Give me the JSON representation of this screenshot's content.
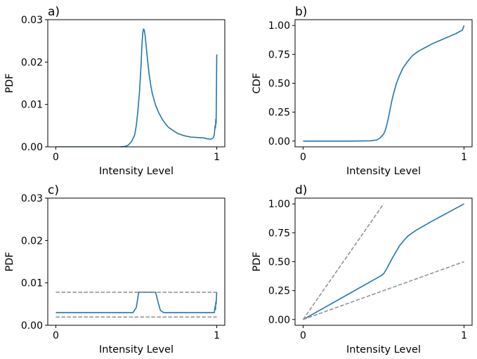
{
  "colors": {
    "series": "#1f77b4",
    "reference": "#8c8c8c",
    "axes": "#000000"
  },
  "chart_data": [
    {
      "panel": "a)",
      "type": "line",
      "xlabel": "Intensity Level",
      "ylabel": "PDF",
      "xlim": [
        -0.05,
        1.05
      ],
      "ylim": [
        0,
        0.03
      ],
      "xticks": [
        0,
        1
      ],
      "xtick_labels": [
        "0",
        "1"
      ],
      "yticks": [
        0,
        0.01,
        0.02,
        0.03
      ],
      "ytick_labels": [
        "0.00",
        "0.01",
        "0.02",
        "0.03"
      ],
      "grid": false,
      "series": [
        {
          "style": "solid",
          "x": [
            0,
            0.3,
            0.4,
            0.43,
            0.45,
            0.47,
            0.49,
            0.5,
            0.51,
            0.52,
            0.53,
            0.535,
            0.54,
            0.545,
            0.55,
            0.555,
            0.56,
            0.57,
            0.58,
            0.59,
            0.6,
            0.62,
            0.64,
            0.66,
            0.68,
            0.7,
            0.73,
            0.76,
            0.8,
            0.84,
            0.88,
            0.92,
            0.94,
            0.96,
            0.97,
            0.98,
            0.985,
            0.99,
            0.992,
            0.994,
            0.996,
            0.998,
            1.0
          ],
          "y": [
            0,
            0,
            2e-05,
            0.0001,
            0.0004,
            0.0012,
            0.0028,
            0.005,
            0.0085,
            0.013,
            0.0195,
            0.024,
            0.0268,
            0.0278,
            0.0275,
            0.0262,
            0.0243,
            0.0205,
            0.017,
            0.0145,
            0.0125,
            0.0098,
            0.008,
            0.0066,
            0.0055,
            0.0046,
            0.0038,
            0.0031,
            0.0026,
            0.0023,
            0.0022,
            0.0021,
            0.0019,
            0.0018,
            0.0019,
            0.0022,
            0.003,
            0.005,
            0.0045,
            0.0065,
            0.0055,
            0.0135,
            0.0218
          ]
        }
      ]
    },
    {
      "panel": "b)",
      "type": "line",
      "xlabel": "Intensity Level",
      "ylabel": "CDF",
      "xlim": [
        -0.05,
        1.05
      ],
      "ylim": [
        -0.05,
        1.05
      ],
      "xticks": [
        0,
        1
      ],
      "xtick_labels": [
        "0",
        "1"
      ],
      "yticks": [
        0,
        0.25,
        0.5,
        0.75,
        1.0
      ],
      "ytick_labels": [
        "0.00",
        "0.25",
        "0.50",
        "0.75",
        "1.00"
      ],
      "grid": false,
      "series": [
        {
          "style": "solid",
          "x": [
            0,
            0.3,
            0.42,
            0.46,
            0.48,
            0.5,
            0.51,
            0.52,
            0.53,
            0.54,
            0.55,
            0.56,
            0.58,
            0.6,
            0.62,
            0.65,
            0.68,
            0.72,
            0.76,
            0.8,
            0.85,
            0.9,
            0.95,
            0.99,
            1.0
          ],
          "y": [
            0,
            0,
            0.002,
            0.01,
            0.03,
            0.06,
            0.09,
            0.14,
            0.2,
            0.27,
            0.34,
            0.4,
            0.5,
            0.57,
            0.63,
            0.69,
            0.74,
            0.78,
            0.81,
            0.84,
            0.87,
            0.9,
            0.93,
            0.96,
            1.0
          ]
        }
      ]
    },
    {
      "panel": "c)",
      "type": "line",
      "xlabel": "Intensity Level",
      "ylabel": "PDF",
      "xlim": [
        -0.05,
        1.05
      ],
      "ylim": [
        0,
        0.03
      ],
      "xticks": [
        0,
        1
      ],
      "xtick_labels": [
        "0",
        "1"
      ],
      "yticks": [
        0,
        0.01,
        0.02,
        0.03
      ],
      "ytick_labels": [
        "0.00",
        "0.01",
        "0.02",
        "0.03"
      ],
      "grid": false,
      "series": [
        {
          "style": "solid",
          "x": [
            0,
            0.48,
            0.5,
            0.515,
            0.53,
            0.62,
            0.635,
            0.65,
            0.67,
            0.7,
            0.985,
            0.99,
            0.992,
            0.994,
            0.996,
            0.998,
            1.0
          ],
          "y": [
            0.003,
            0.003,
            0.0042,
            0.0078,
            0.0078,
            0.0078,
            0.0055,
            0.0035,
            0.003,
            0.003,
            0.003,
            0.0045,
            0.0037,
            0.0055,
            0.005,
            0.0065,
            0.0078
          ]
        },
        {
          "style": "dashed",
          "x": [
            0,
            1
          ],
          "y": [
            0.0078,
            0.0078
          ]
        },
        {
          "style": "dashed",
          "x": [
            0,
            1
          ],
          "y": [
            0.00195,
            0.00195
          ]
        }
      ]
    },
    {
      "panel": "d)",
      "type": "line",
      "xlabel": "Intensity Level",
      "ylabel": "PDF",
      "xlim": [
        -0.05,
        1.05
      ],
      "ylim": [
        -0.05,
        1.05
      ],
      "xticks": [
        0,
        1
      ],
      "xtick_labels": [
        "0",
        "1"
      ],
      "yticks": [
        0,
        0.25,
        0.5,
        0.75,
        1.0
      ],
      "ytick_labels": [
        "0.00",
        "0.25",
        "0.50",
        "0.75",
        "1.00"
      ],
      "grid": false,
      "series": [
        {
          "style": "solid",
          "x": [
            0,
            0.02,
            0.48,
            0.5,
            0.52,
            0.55,
            0.6,
            0.63,
            0.65,
            0.7,
            0.8,
            0.9,
            1.0
          ],
          "y": [
            0,
            0.015,
            0.375,
            0.395,
            0.44,
            0.52,
            0.64,
            0.69,
            0.72,
            0.77,
            0.85,
            0.925,
            1.0
          ]
        },
        {
          "style": "dashed",
          "x": [
            0,
            0.5
          ],
          "y": [
            0,
            1.0
          ]
        },
        {
          "style": "dashed",
          "x": [
            0,
            1.0
          ],
          "y": [
            0,
            0.5
          ]
        }
      ]
    }
  ]
}
